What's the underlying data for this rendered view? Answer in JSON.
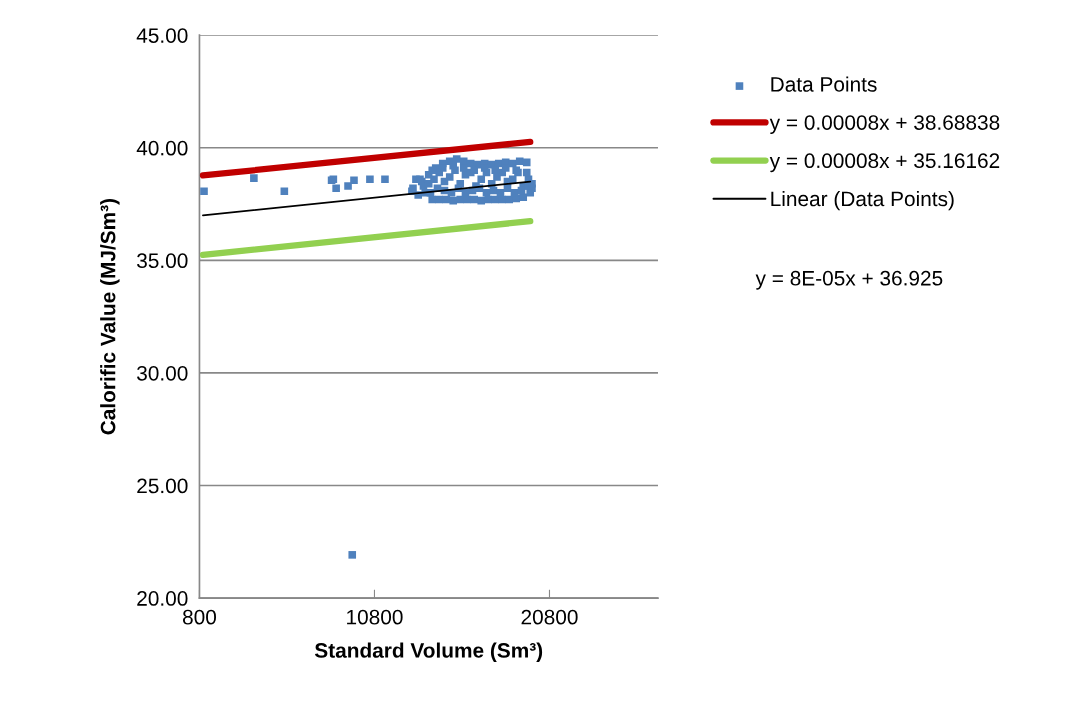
{
  "chart_data": {
    "type": "scatter",
    "xlabel": "Standard Volume (Sm³)",
    "ylabel": "Calorific Value (MJ/Sm³)",
    "xlim": [
      800,
      27000
    ],
    "xticks": [
      800,
      10800,
      20800
    ],
    "ylim": [
      20,
      45
    ],
    "yticks": [
      {
        "value": 20,
        "label": "20.00"
      },
      {
        "value": 25,
        "label": "25.00"
      },
      {
        "value": 30,
        "label": "30.00"
      },
      {
        "value": 35,
        "label": "35.00"
      },
      {
        "value": 40,
        "label": "40.00"
      },
      {
        "value": 45,
        "label": "45.00"
      }
    ],
    "grid": "y",
    "legend": "right",
    "annotations": [
      "y = 8E-05x + 36.925"
    ],
    "series": [
      {
        "name": "Data Points",
        "marker": "square",
        "color": "#4f81bd",
        "x": [
          1060,
          3910,
          5650,
          8350,
          8610,
          8450,
          9290,
          9630,
          10540,
          11400,
          12940,
          13170,
          9530,
          13000,
          13300,
          13500,
          13700,
          13900,
          14100,
          14300,
          14500,
          14700,
          14900,
          15100,
          15300,
          15500,
          15700,
          15900,
          16100,
          16300,
          16500,
          16700,
          16900,
          17100,
          17300,
          17500,
          17700,
          17900,
          18100,
          18300,
          18500,
          18700,
          18900,
          19100,
          19300,
          19500,
          19700,
          13600,
          13900,
          14200,
          14500,
          14800,
          15100,
          15400,
          15700,
          16000,
          16300,
          16600,
          16900,
          17200,
          17500,
          17800,
          18100,
          18400,
          18700,
          19000,
          19300,
          19600,
          19800,
          14000,
          14400,
          14800,
          15200,
          15600,
          16000,
          16400,
          16800,
          17200,
          17600,
          18000,
          18400,
          18800,
          19200,
          19600,
          13400,
          14100,
          14700,
          15300,
          15900,
          16500,
          17100,
          17700,
          18300,
          18900,
          19500,
          19800
        ],
        "values": [
          38.07,
          38.65,
          38.07,
          38.56,
          38.2,
          38.6,
          38.3,
          38.56,
          38.6,
          38.6,
          38.07,
          38.6,
          21.92,
          38.2,
          37.9,
          38.5,
          38.0,
          38.8,
          37.7,
          39.1,
          37.7,
          39.3,
          37.7,
          39.4,
          37.65,
          39.5,
          37.7,
          39.4,
          37.7,
          39.3,
          37.7,
          39.25,
          37.65,
          39.3,
          37.7,
          39.25,
          37.7,
          39.3,
          37.7,
          39.35,
          37.7,
          39.3,
          37.75,
          39.4,
          37.8,
          39.35,
          38.0,
          38.3,
          38.4,
          38.6,
          38.9,
          38.5,
          38.7,
          39.0,
          38.4,
          38.8,
          38.9,
          38.3,
          38.6,
          38.9,
          38.4,
          38.7,
          38.9,
          38.5,
          38.6,
          38.9,
          38.3,
          38.6,
          38.2,
          38.0,
          38.2,
          38.1,
          38.0,
          38.2,
          38.0,
          38.1,
          38.2,
          38.0,
          38.1,
          38.0,
          38.2,
          38.0,
          38.1,
          38.3,
          38.6,
          39.0,
          39.1,
          39.2,
          39.1,
          39.0,
          39.1,
          39.0,
          39.1,
          39.0,
          38.9,
          38.4
        ]
      },
      {
        "name": "y = 0.00008x + 38.68838",
        "type": "line",
        "marker": "none",
        "color": "#c00000",
        "x": [
          1000,
          19700
        ],
        "values": [
          38.77,
          40.26
        ]
      },
      {
        "name": "y = 0.00008x + 35.16162",
        "type": "line",
        "marker": "none",
        "color": "#92d050",
        "x": [
          1000,
          19700
        ],
        "values": [
          35.24,
          36.74
        ]
      },
      {
        "name": "Linear (Data Points)",
        "type": "line",
        "marker": "none",
        "color": "#000000",
        "x": [
          1000,
          19700
        ],
        "values": [
          37.0,
          38.5
        ]
      }
    ]
  }
}
